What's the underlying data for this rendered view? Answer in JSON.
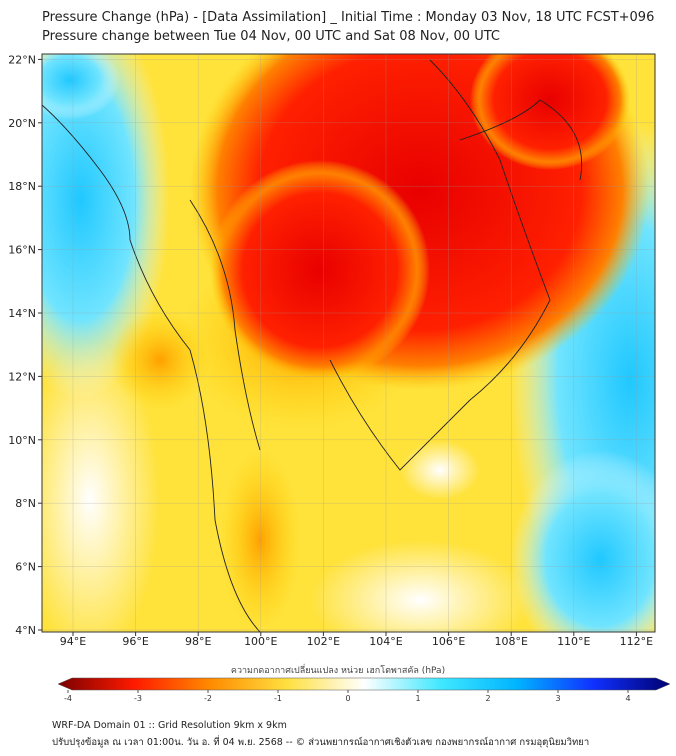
{
  "title": "Pressure Change (hPa) - [Data Assimilation] _ Initial Time : Monday 03 Nov, 18 UTC FCST+096",
  "subtitle": "Pressure change between Tue 04 Nov, 00 UTC and Sat 08 Nov, 00 UTC",
  "map": {
    "lat_labels": [
      "4°N",
      "6°N",
      "8°N",
      "10°N",
      "12°N",
      "14°N",
      "16°N",
      "18°N",
      "20°N",
      "22°N"
    ],
    "lat_values": [
      4,
      6,
      8,
      10,
      12,
      14,
      16,
      18,
      20,
      22
    ],
    "lon_labels": [
      "94°E",
      "96°E",
      "98°E",
      "100°E",
      "102°E",
      "104°E",
      "106°E",
      "108°E",
      "110°E",
      "112°E"
    ],
    "lon_values": [
      94,
      96,
      98,
      100,
      102,
      104,
      106,
      108,
      110,
      112
    ],
    "lon_range": [
      93,
      112.6
    ],
    "lat_range": [
      4,
      22.2
    ]
  },
  "colorbar": {
    "title": "ความกดอากาศเปลี่ยนแปลง หน่วย เฮกโตพาสคัล (hPa)",
    "ticks": [
      "-4",
      "-3",
      "-2",
      "-1",
      "0",
      "1",
      "2",
      "3",
      "4"
    ],
    "range": [
      -4,
      4
    ],
    "colors": [
      "#7a0000",
      "#ff1a00",
      "#ff8c00",
      "#ffe040",
      "#ffffff",
      "#40e8ff",
      "#00b4ff",
      "#1030ff",
      "#000070"
    ]
  },
  "footer": {
    "line1": "WRF-DA Domain 01 :: Grid Resolution 9km x 9km",
    "line2": "ปรับปรุงข้อมูล ณ เวลา 01:00น. วัน อ. ที่ 04 พ.ย. 2568 -- © ส่วนพยากรณ์อากาศเชิงตัวเลข กองพยากรณ์อากาศ กรมอุตุนิยมวิทยา"
  }
}
